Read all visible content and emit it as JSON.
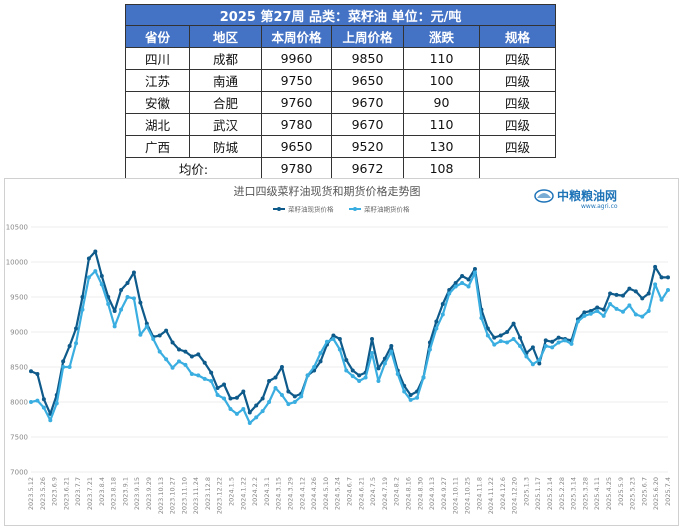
{
  "table": {
    "title": "2025 第27周 品类：菜籽油 单位：元/吨",
    "headers": [
      "省份",
      "地区",
      "本周价格",
      "上周价格",
      "涨跌",
      "规格"
    ],
    "rows": [
      [
        "四川",
        "成都",
        "9960",
        "9850",
        "110",
        "四级"
      ],
      [
        "江苏",
        "南通",
        "9750",
        "9650",
        "100",
        "四级"
      ],
      [
        "安徽",
        "合肥",
        "9760",
        "9670",
        "90",
        "四级"
      ],
      [
        "湖北",
        "武汉",
        "9780",
        "9670",
        "110",
        "四级"
      ],
      [
        "广西",
        "防城",
        "9650",
        "9520",
        "130",
        "四级"
      ]
    ],
    "average": {
      "label": "均价:",
      "this_week": "9780",
      "last_week": "9672",
      "change": "108"
    }
  },
  "logo": {
    "name": "中粮粮油网",
    "url_text": "www.agri.co"
  },
  "colors": {
    "header_bg": "#4472c4",
    "spot": "#0e5a8a",
    "futures": "#3aaee0",
    "grid": "#e6e6e6"
  },
  "chart_data": {
    "type": "line",
    "title": "进口四级菜籽油现货和期货价格走势图",
    "legend_position": "top",
    "grid": true,
    "ylim": [
      7000,
      10500
    ],
    "yticks": [
      7000,
      7500,
      8000,
      8500,
      9000,
      9500,
      10000,
      10500
    ],
    "x_tick_labels": [
      "2023.5.12",
      "2023.5.26",
      "2023.6.9",
      "2023.6.21",
      "2023.7.7",
      "2023.7.21",
      "2023.8.4",
      "2023.8.18",
      "2023.9.1",
      "2023.9.15",
      "2023.9.29",
      "2023.10.13",
      "2023.10.27",
      "2023.11.10",
      "2023.11.24",
      "2023.12.8",
      "2023.12.22",
      "2024.1.5",
      "2024.1.22",
      "2024.2.2",
      "2024.3.1",
      "2024.3.15",
      "2024.3.29",
      "2024.4.12",
      "2024.4.26",
      "2024.5.10",
      "2024.5.24",
      "2024.6.7",
      "2024.6.21",
      "2024.7.5",
      "2024.7.19",
      "2024.8.2",
      "2024.8.16",
      "2024.8.30",
      "2024.9.13",
      "2024.9.27",
      "2024.10.11",
      "2024.10.25",
      "2024.11.8",
      "2024.11.22",
      "2024.12.6",
      "2024.12.20",
      "2025.1.3",
      "2025.1.17",
      "2025.2.14",
      "2025.2.28",
      "2025.3.14",
      "2025.3.28",
      "2025.4.11",
      "2025.4.25",
      "2025.5.9",
      "2025.5.23",
      "2025.6.7",
      "2025.6.20",
      "2025.7.4"
    ],
    "series": [
      {
        "name": "菜籽油现货价格",
        "values": [
          8440,
          8400,
          8040,
          7830,
          8100,
          8580,
          8800,
          9050,
          9500,
          10050,
          10150,
          9800,
          9500,
          9300,
          9600,
          9700,
          9850,
          9420,
          9120,
          8930,
          8950,
          9020,
          8850,
          8750,
          8720,
          8650,
          8680,
          8560,
          8420,
          8200,
          8250,
          8050,
          8060,
          8150,
          7850,
          7950,
          8050,
          8300,
          8350,
          8500,
          8150,
          8080,
          8120,
          8380,
          8450,
          8580,
          8820,
          8950,
          8900,
          8600,
          8450,
          8380,
          8420,
          8900,
          8480,
          8620,
          8800,
          8450,
          8230,
          8100,
          8150,
          8350,
          8850,
          9150,
          9400,
          9600,
          9700,
          9800,
          9750,
          9900,
          9320,
          9050,
          8920,
          8950,
          9000,
          9120,
          8920,
          8700,
          8780,
          8550,
          8880,
          8860,
          8920,
          8900,
          8880,
          9180,
          9280,
          9300,
          9350,
          9320,
          9550,
          9530,
          9520,
          9620,
          9580,
          9480,
          9550,
          9930,
          9780,
          9780
        ],
        "color": "#0e5a8a"
      },
      {
        "name": "菜籽油期货价格",
        "values": [
          8000,
          8020,
          7920,
          7740,
          7980,
          8500,
          8500,
          8840,
          9320,
          9780,
          9870,
          9680,
          9400,
          9080,
          9320,
          9500,
          9480,
          8960,
          9080,
          8900,
          8720,
          8610,
          8490,
          8580,
          8530,
          8400,
          8380,
          8330,
          8300,
          8100,
          8050,
          7900,
          7830,
          7900,
          7700,
          7780,
          7870,
          8000,
          8200,
          8100,
          7970,
          8000,
          8080,
          8380,
          8500,
          8700,
          8860,
          8900,
          8750,
          8450,
          8370,
          8300,
          8350,
          8700,
          8300,
          8550,
          8720,
          8400,
          8150,
          8030,
          8060,
          8350,
          8750,
          9050,
          9250,
          9550,
          9650,
          9700,
          9650,
          9850,
          9200,
          8950,
          8820,
          8870,
          8850,
          8900,
          8800,
          8650,
          8540,
          8600,
          8800,
          8780,
          8850,
          8880,
          8830,
          9150,
          9230,
          9260,
          9300,
          9230,
          9400,
          9330,
          9290,
          9380,
          9250,
          9220,
          9300,
          9680,
          9460,
          9600
        ],
        "color": "#3aaee0"
      }
    ]
  }
}
